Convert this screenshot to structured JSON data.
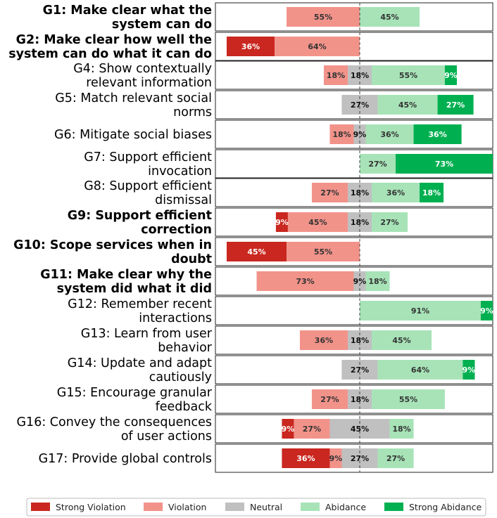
{
  "chart_data": {
    "type": "bar",
    "orientation": "horizontal",
    "stacked": "diverging",
    "center_line": "dashed",
    "legend_position": "bottom",
    "categories": [
      {
        "line1": "G1: Make clear what the",
        "line2": "system can do",
        "bold": true
      },
      {
        "line1": "G2: Make clear how well the",
        "line2": "system can do what it can do",
        "bold": true
      },
      {
        "line1": "G4: Show contextually",
        "line2": "relevant information",
        "bold": false
      },
      {
        "line1": "G5: Match relevant social",
        "line2": "norms",
        "bold": false
      },
      {
        "line1": "G6: Mitigate social biases",
        "line2": "",
        "bold": false
      },
      {
        "line1": "G7: Support efficient",
        "line2": "invocation",
        "bold": false
      },
      {
        "line1": "G8: Support efficient",
        "line2": "dismissal",
        "bold": false
      },
      {
        "line1": "G9: Support efficient",
        "line2": "correction",
        "bold": true
      },
      {
        "line1": "G10: Scope services when in",
        "line2": "doubt",
        "bold": true
      },
      {
        "line1": "G11: Make clear why the",
        "line2": "system did what it did",
        "bold": true
      },
      {
        "line1": "G12: Remember recent",
        "line2": "interactions",
        "bold": false
      },
      {
        "line1": "G13: Learn from user",
        "line2": "behavior",
        "bold": false
      },
      {
        "line1": "G14: Update and adapt",
        "line2": "cautiously",
        "bold": false
      },
      {
        "line1": "G15: Encourage granular",
        "line2": "feedback",
        "bold": false
      },
      {
        "line1": "G16: Convey the consequences",
        "line2": "of user actions",
        "bold": false
      },
      {
        "line1": "G17: Provide global controls",
        "line2": "",
        "bold": false
      }
    ],
    "series": [
      {
        "name": "Strong Violation",
        "color": "#c9271f",
        "label_color": "#ffffff",
        "values": [
          0,
          36,
          0,
          0,
          0,
          0,
          0,
          9,
          45,
          0,
          0,
          0,
          0,
          0,
          9,
          36
        ]
      },
      {
        "name": "Violation",
        "color": "#f2938a",
        "label_color": "#333333",
        "values": [
          55,
          64,
          18,
          0,
          18,
          0,
          27,
          45,
          55,
          73,
          0,
          36,
          0,
          27,
          27,
          9
        ]
      },
      {
        "name": "Neutral",
        "color": "#c0c0c0",
        "label_color": "#111111",
        "values": [
          0,
          0,
          18,
          27,
          9,
          0,
          18,
          18,
          0,
          9,
          0,
          18,
          27,
          18,
          45,
          27
        ]
      },
      {
        "name": "Abidance",
        "color": "#a7e3b7",
        "label_color": "#333333",
        "values": [
          45,
          0,
          55,
          45,
          36,
          27,
          36,
          27,
          0,
          18,
          91,
          45,
          64,
          55,
          18,
          27
        ]
      },
      {
        "name": "Strong Abidance",
        "color": "#00b050",
        "label_color": "#ffffff",
        "values": [
          0,
          0,
          9,
          27,
          36,
          73,
          18,
          0,
          0,
          0,
          9,
          0,
          9,
          0,
          0,
          0
        ]
      }
    ],
    "unit": "%"
  }
}
